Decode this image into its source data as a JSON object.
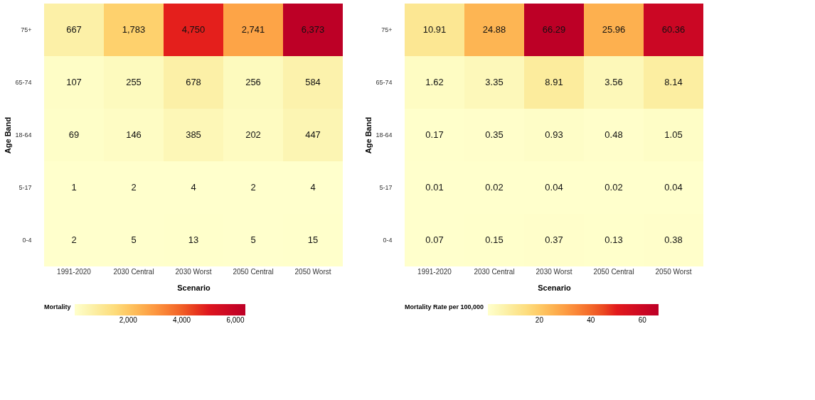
{
  "chart_data": [
    {
      "type": "heatmap",
      "xlabel": "Scenario",
      "ylabel": "Age Band",
      "clabel": "Mortality",
      "categories": [
        "1991-2020",
        "2030 Central",
        "2030 Worst",
        "2050 Central",
        "2050 Worst"
      ],
      "y_categories": [
        "75+",
        "65-74",
        "18-64",
        "5-17",
        "0-4"
      ],
      "cells": [
        [
          667,
          1783,
          4750,
          2741,
          6373
        ],
        [
          107,
          255,
          678,
          256,
          584
        ],
        [
          69,
          146,
          385,
          202,
          447
        ],
        [
          1,
          2,
          4,
          2,
          4
        ],
        [
          2,
          5,
          13,
          5,
          15
        ]
      ],
      "cell_labels": [
        [
          "667",
          "1,783",
          "4,750",
          "2,741",
          "6,373"
        ],
        [
          "107",
          "255",
          "678",
          "256",
          "584"
        ],
        [
          "69",
          "146",
          "385",
          "202",
          "447"
        ],
        [
          "1",
          "2",
          "4",
          "2",
          "4"
        ],
        [
          "2",
          "5",
          "13",
          "5",
          "15"
        ]
      ],
      "clim": [
        1,
        6373
      ],
      "cticks": [
        {
          "value": 2000,
          "label": "2,000"
        },
        {
          "value": 4000,
          "label": "4,000"
        },
        {
          "value": 6000,
          "label": "6,000"
        }
      ]
    },
    {
      "type": "heatmap",
      "xlabel": "Scenario",
      "ylabel": "Age Band",
      "clabel": "Mortality Rate per 100,000",
      "categories": [
        "1991-2020",
        "2030 Central",
        "2030 Worst",
        "2050 Central",
        "2050 Worst"
      ],
      "y_categories": [
        "75+",
        "65-74",
        "18-64",
        "5-17",
        "0-4"
      ],
      "cells": [
        [
          10.91,
          24.88,
          66.29,
          25.96,
          60.36
        ],
        [
          1.62,
          3.35,
          8.91,
          3.56,
          8.14
        ],
        [
          0.17,
          0.35,
          0.93,
          0.48,
          1.05
        ],
        [
          0.01,
          0.02,
          0.04,
          0.02,
          0.04
        ],
        [
          0.07,
          0.15,
          0.37,
          0.13,
          0.38
        ]
      ],
      "cell_labels": [
        [
          "10.91",
          "24.88",
          "66.29",
          "25.96",
          "60.36"
        ],
        [
          "1.62",
          "3.35",
          "8.91",
          "3.56",
          "8.14"
        ],
        [
          "0.17",
          "0.35",
          "0.93",
          "0.48",
          "1.05"
        ],
        [
          "0.01",
          "0.02",
          "0.04",
          "0.02",
          "0.04"
        ],
        [
          "0.07",
          "0.15",
          "0.37",
          "0.13",
          "0.38"
        ]
      ],
      "clim": [
        0.01,
        66.29
      ],
      "cticks": [
        20,
        40,
        60
      ]
    }
  ]
}
